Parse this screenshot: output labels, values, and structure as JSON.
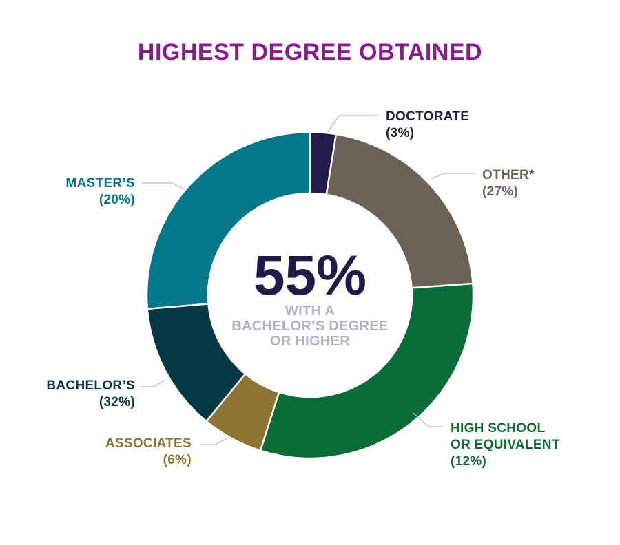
{
  "colors": {
    "title": "#8b1a91",
    "center_value": "#241a4a",
    "center_caption": "#b3b0c2",
    "leader_line": "#bdbdbd"
  },
  "chart_data": {
    "type": "pie",
    "title": "HIGHEST DEGREE OBTAINED",
    "center": {
      "value": "55%",
      "caption": [
        "WITH A",
        "BACHELOR’S DEGREE",
        "OR HIGHER"
      ]
    },
    "slices": [
      {
        "label": [
          "DOCTORATE"
        ],
        "pct": "(3%)",
        "value": 3,
        "color": "#231b49"
      },
      {
        "label": [
          "OTHER*"
        ],
        "pct": "(27%)",
        "value": 27,
        "color": "#6c6155"
      },
      {
        "label": [
          "HIGH SCHOOL",
          "OR EQUIVALENT"
        ],
        "pct": "(12%)",
        "value": 12,
        "color": "#0a6c36"
      },
      {
        "label": [
          "ASSOCIATES"
        ],
        "pct": "(6%)",
        "value": 6,
        "color": "#8d7433"
      },
      {
        "label": [
          "BACHELOR’S"
        ],
        "pct": "(32%)",
        "value": 32,
        "color": "#053847"
      },
      {
        "label": [
          "MASTER’S"
        ],
        "pct": "(20%)",
        "value": 20,
        "color": "#02788a"
      }
    ]
  }
}
